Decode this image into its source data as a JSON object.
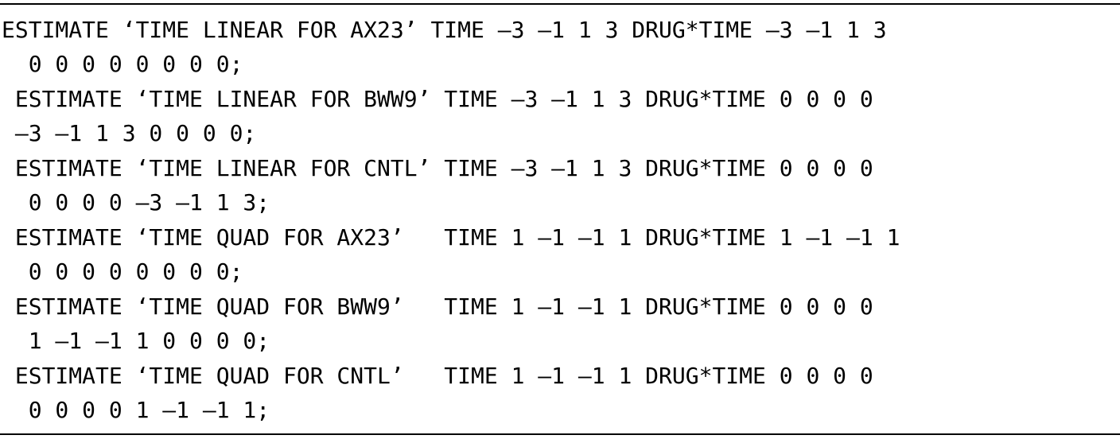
{
  "document": {
    "lines": [
      "ESTIMATE ‘TIME LINEAR FOR AX23’ TIME —3 —1 1 3 DRUG*TIME —3 —1 1 3",
      "  0 0 0 0 0 0 0 0;",
      " ESTIMATE ‘TIME LINEAR FOR BWW9’ TIME —3 —1 1 3 DRUG*TIME 0 0 0 0",
      " —3 —1 1 3 0 0 0 0;",
      " ESTIMATE ‘TIME LINEAR FOR CNTL’ TIME —3 —1 1 3 DRUG*TIME 0 0 0 0",
      "  0 0 0 0 —3 —1 1 3;",
      " ESTIMATE ‘TIME QUAD FOR AX23’   TIME 1 —1 —1 1 DRUG*TIME 1 —1 —1 1",
      "  0 0 0 0 0 0 0 0;",
      " ESTIMATE ‘TIME QUAD FOR BWW9’   TIME 1 —1 —1 1 DRUG*TIME 0 0 0 0",
      "  1 —1 —1 1 0 0 0 0;",
      " ESTIMATE ‘TIME QUAD FOR CNTL’   TIME 1 —1 —1 1 DRUG*TIME 0 0 0 0",
      "  0 0 0 0 1 —1 —1 1;"
    ]
  }
}
